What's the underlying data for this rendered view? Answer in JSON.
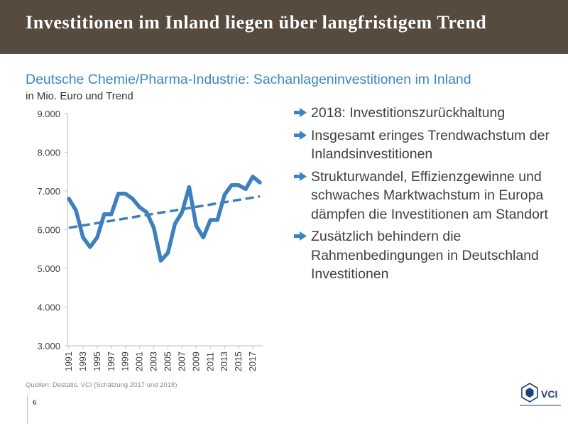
{
  "header": {
    "title": "Investitionen im Inland liegen über langfristigem Trend"
  },
  "slide": {
    "subtitle": "Deutsche Chemie/Pharma-Industrie: Sachanlageninvestitionen im Inland",
    "unit_label": "in Mio. Euro und Trend"
  },
  "bullets": [
    "2018: Investitionszurückhaltung",
    "Insgesamt eringes Trendwachstum der Inlandsinvestitionen",
    "Strukturwandel, Effizienzgewinne und schwaches Marktwachstum in Europa dämpfen die Investitionen am Standort",
    "Zusätzlich behindern die Rahmenbedingungen in Deutschland Investitionen"
  ],
  "footer": {
    "source": "Quellen: Destatis, VCI (Schätzung 2017 und 2018)",
    "page_number": "6",
    "logo_text": "VCI"
  },
  "colors": {
    "header_bg": "#574a3e",
    "accent": "#3a86c4",
    "series": "#3e7fbe"
  },
  "chart_data": {
    "type": "line",
    "title": "Deutsche Chemie/Pharma-Industrie: Sachanlageninvestitionen im Inland",
    "ylabel": "in Mio. Euro und Trend",
    "xlabel": "",
    "ylim": [
      3000,
      9000
    ],
    "yticks": [
      3000,
      4000,
      5000,
      6000,
      7000,
      8000,
      9000
    ],
    "ytick_labels": [
      "3.000",
      "4.000",
      "5.000",
      "6.000",
      "7.000",
      "8.000",
      "9.000"
    ],
    "xtick_labels": [
      "1991",
      "1993",
      "1995",
      "1997",
      "1999",
      "2001",
      "2003",
      "2005",
      "2007",
      "2009",
      "2011",
      "2013",
      "2015",
      "2017"
    ],
    "grid": false,
    "legend": "none",
    "x": [
      1991,
      1992,
      1993,
      1994,
      1995,
      1996,
      1997,
      1998,
      1999,
      2000,
      2001,
      2002,
      2003,
      2004,
      2005,
      2006,
      2007,
      2008,
      2009,
      2010,
      2011,
      2012,
      2013,
      2014,
      2015,
      2016,
      2017,
      2018
    ],
    "series": [
      {
        "name": "Sachanlageninvestitionen",
        "style": "solid",
        "values": [
          6800,
          6500,
          5800,
          5550,
          5800,
          6400,
          6400,
          6930,
          6930,
          6800,
          6580,
          6450,
          6050,
          5200,
          5400,
          6150,
          6450,
          7100,
          6100,
          5800,
          6250,
          6250,
          6900,
          7150,
          7150,
          7050,
          7370,
          7220
        ]
      },
      {
        "name": "Trend",
        "style": "dashed",
        "values": [
          6050,
          6080,
          6110,
          6140,
          6170,
          6200,
          6230,
          6260,
          6290,
          6320,
          6350,
          6380,
          6410,
          6440,
          6470,
          6500,
          6530,
          6560,
          6590,
          6620,
          6650,
          6680,
          6710,
          6740,
          6770,
          6800,
          6830,
          6860
        ]
      }
    ]
  }
}
